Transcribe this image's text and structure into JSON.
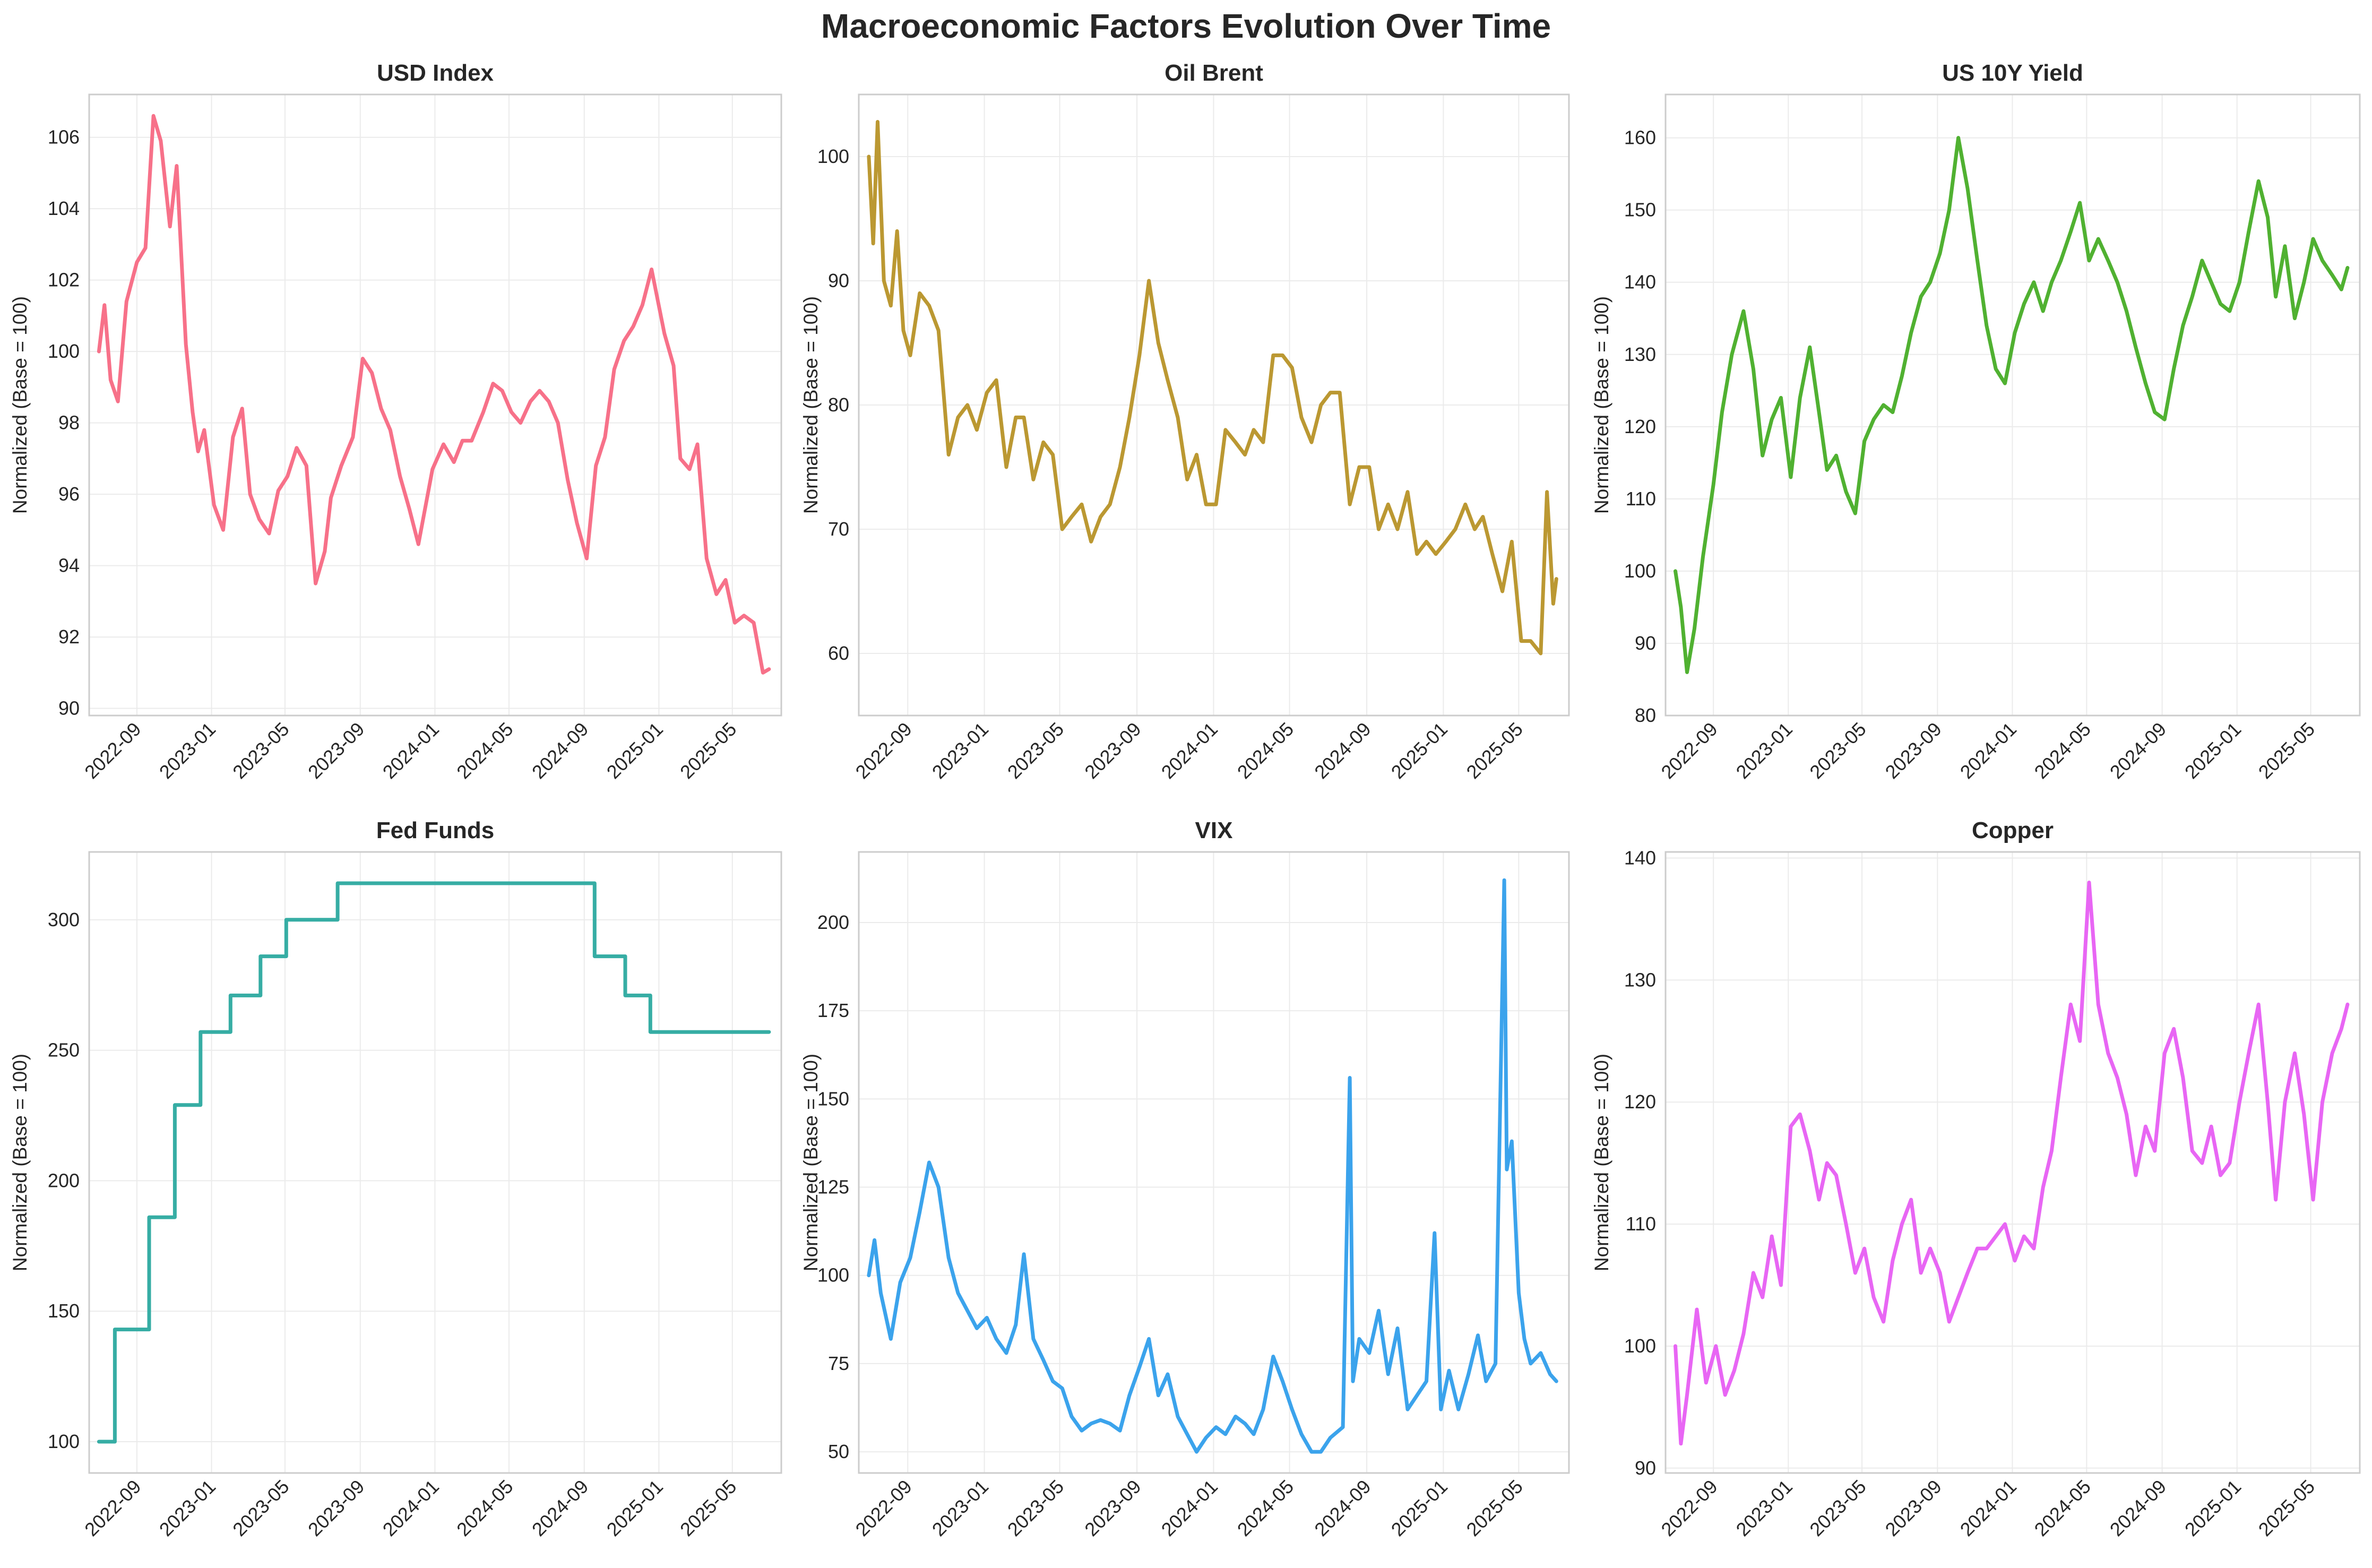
{
  "title": "Macroeconomic Factors Evolution Over Time",
  "colors": {
    "usd": "#f77189",
    "oil": "#bb9832",
    "yield": "#50b131",
    "fed": "#36ada4",
    "vix": "#3ba3ec",
    "copper": "#e866f4"
  },
  "chart_data": [
    {
      "type": "line",
      "title": "USD Index",
      "ylabel": "Normalized (Base = 100)",
      "color_key": "usd",
      "ylim": [
        89.8,
        107.2
      ],
      "yticks": [
        90,
        92,
        94,
        96,
        98,
        100,
        102,
        104,
        106
      ],
      "xlim": [
        "2022-06-15",
        "2025-07-20"
      ],
      "xticks": [
        "2022-09",
        "2023-01",
        "2023-05",
        "2023-09",
        "2024-01",
        "2024-05",
        "2024-09",
        "2025-01",
        "2025-05"
      ],
      "grid": true,
      "x": [
        "2022-07-01",
        "2022-07-10",
        "2022-07-20",
        "2022-08-01",
        "2022-08-15",
        "2022-09-01",
        "2022-09-15",
        "2022-09-28",
        "2022-10-10",
        "2022-10-25",
        "2022-11-05",
        "2022-11-20",
        "2022-12-01",
        "2022-12-10",
        "2022-12-20",
        "2023-01-05",
        "2023-01-20",
        "2023-02-05",
        "2023-02-20",
        "2023-03-05",
        "2023-03-20",
        "2023-04-05",
        "2023-04-20",
        "2023-05-05",
        "2023-05-20",
        "2023-06-05",
        "2023-06-20",
        "2023-07-05",
        "2023-07-15",
        "2023-08-01",
        "2023-08-20",
        "2023-09-05",
        "2023-09-20",
        "2023-10-05",
        "2023-10-20",
        "2023-11-05",
        "2023-11-20",
        "2023-12-05",
        "2023-12-28",
        "2024-01-15",
        "2024-02-01",
        "2024-02-15",
        "2024-03-01",
        "2024-03-20",
        "2024-04-05",
        "2024-04-20",
        "2024-05-05",
        "2024-05-20",
        "2024-06-05",
        "2024-06-20",
        "2024-07-05",
        "2024-07-20",
        "2024-08-05",
        "2024-08-20",
        "2024-09-05",
        "2024-09-20",
        "2024-10-05",
        "2024-10-20",
        "2024-11-05",
        "2024-11-20",
        "2024-12-05",
        "2024-12-20",
        "2025-01-10",
        "2025-01-25",
        "2025-02-05",
        "2025-02-20",
        "2025-03-05",
        "2025-03-20",
        "2025-04-05",
        "2025-04-20",
        "2025-05-05",
        "2025-05-20",
        "2025-06-05",
        "2025-06-20",
        "2025-06-30"
      ],
      "values": [
        100.0,
        101.3,
        99.2,
        98.6,
        101.4,
        102.5,
        102.9,
        106.6,
        105.9,
        103.5,
        105.2,
        100.2,
        98.3,
        97.2,
        97.8,
        95.7,
        95.0,
        97.6,
        98.4,
        96.0,
        95.3,
        94.9,
        96.1,
        96.5,
        97.3,
        96.8,
        93.5,
        94.4,
        95.9,
        96.8,
        97.6,
        99.8,
        99.4,
        98.4,
        97.8,
        96.5,
        95.6,
        94.6,
        96.7,
        97.4,
        96.9,
        97.5,
        97.5,
        98.3,
        99.1,
        98.9,
        98.3,
        98.0,
        98.6,
        98.9,
        98.6,
        98.0,
        96.4,
        95.2,
        94.2,
        96.8,
        97.6,
        99.5,
        100.3,
        100.7,
        101.3,
        102.3,
        100.5,
        99.6,
        97.0,
        96.7,
        97.4,
        94.2,
        93.2,
        93.6,
        92.4,
        92.6,
        92.4,
        91.0,
        91.1
      ]
    },
    {
      "type": "line",
      "title": "Oil Brent",
      "ylabel": "Normalized (Base = 100)",
      "color_key": "oil",
      "ylim": [
        55,
        105
      ],
      "yticks": [
        60,
        70,
        80,
        90,
        100
      ],
      "xlim": [
        "2022-06-15",
        "2025-07-20"
      ],
      "xticks": [
        "2022-09",
        "2023-01",
        "2023-05",
        "2023-09",
        "2024-01",
        "2024-05",
        "2024-09",
        "2025-01",
        "2025-05"
      ],
      "grid": true,
      "x": [
        "2022-07-01",
        "2022-07-08",
        "2022-07-15",
        "2022-07-25",
        "2022-08-05",
        "2022-08-15",
        "2022-08-25",
        "2022-09-05",
        "2022-09-20",
        "2022-10-05",
        "2022-10-20",
        "2022-11-05",
        "2022-11-20",
        "2022-12-05",
        "2022-12-20",
        "2023-01-05",
        "2023-01-20",
        "2023-02-05",
        "2023-02-20",
        "2023-03-05",
        "2023-03-20",
        "2023-04-05",
        "2023-04-20",
        "2023-05-05",
        "2023-05-20",
        "2023-06-05",
        "2023-06-20",
        "2023-07-05",
        "2023-07-20",
        "2023-08-05",
        "2023-08-20",
        "2023-09-05",
        "2023-09-20",
        "2023-10-05",
        "2023-10-20",
        "2023-11-05",
        "2023-11-20",
        "2023-12-05",
        "2023-12-20",
        "2024-01-05",
        "2024-01-20",
        "2024-02-05",
        "2024-02-20",
        "2024-03-05",
        "2024-03-20",
        "2024-04-05",
        "2024-04-20",
        "2024-05-05",
        "2024-05-20",
        "2024-06-05",
        "2024-06-20",
        "2024-07-05",
        "2024-07-20",
        "2024-08-05",
        "2024-08-20",
        "2024-09-05",
        "2024-09-20",
        "2024-10-05",
        "2024-10-20",
        "2024-11-05",
        "2024-11-20",
        "2024-12-05",
        "2024-12-20",
        "2025-01-05",
        "2025-01-20",
        "2025-02-05",
        "2025-02-20",
        "2025-03-05",
        "2025-03-20",
        "2025-04-05",
        "2025-04-20",
        "2025-05-05",
        "2025-05-20",
        "2025-06-05",
        "2025-06-15",
        "2025-06-25",
        "2025-06-30"
      ],
      "values": [
        100,
        93,
        102.8,
        90,
        88,
        94,
        86,
        84,
        89,
        88,
        86,
        76,
        79,
        80,
        78,
        81,
        82,
        75,
        79,
        79,
        74,
        77,
        76,
        70,
        71,
        72,
        69,
        71,
        72,
        75,
        79,
        84,
        90,
        85,
        82,
        79,
        74,
        76,
        72,
        72,
        78,
        77,
        76,
        78,
        77,
        84,
        84,
        83,
        79,
        77,
        80,
        81,
        81,
        72,
        75,
        75,
        70,
        72,
        70,
        73,
        68,
        69,
        68,
        69,
        70,
        72,
        70,
        71,
        68,
        65,
        69,
        61,
        61,
        60,
        73,
        64,
        66
      ]
    },
    {
      "type": "line",
      "title": "US 10Y Yield",
      "ylabel": "Normalized (Base = 100)",
      "color_key": "yield",
      "ylim": [
        80,
        166
      ],
      "yticks": [
        80,
        90,
        100,
        110,
        120,
        130,
        140,
        150,
        160
      ],
      "xlim": [
        "2022-06-15",
        "2025-07-20"
      ],
      "xticks": [
        "2022-09",
        "2023-01",
        "2023-05",
        "2023-09",
        "2024-01",
        "2024-05",
        "2024-09",
        "2025-01",
        "2025-05"
      ],
      "grid": true,
      "x": [
        "2022-07-01",
        "2022-07-10",
        "2022-07-20",
        "2022-08-01",
        "2022-08-15",
        "2022-09-01",
        "2022-09-15",
        "2022-10-01",
        "2022-10-20",
        "2022-11-05",
        "2022-11-20",
        "2022-12-05",
        "2022-12-20",
        "2023-01-05",
        "2023-01-20",
        "2023-02-05",
        "2023-02-20",
        "2023-03-05",
        "2023-03-20",
        "2023-04-05",
        "2023-04-20",
        "2023-05-05",
        "2023-05-20",
        "2023-06-05",
        "2023-06-20",
        "2023-07-05",
        "2023-07-20",
        "2023-08-05",
        "2023-08-20",
        "2023-09-05",
        "2023-09-20",
        "2023-10-05",
        "2023-10-20",
        "2023-11-05",
        "2023-11-20",
        "2023-12-05",
        "2023-12-20",
        "2024-01-05",
        "2024-01-20",
        "2024-02-05",
        "2024-02-20",
        "2024-03-05",
        "2024-03-20",
        "2024-04-05",
        "2024-04-20",
        "2024-05-05",
        "2024-05-20",
        "2024-06-05",
        "2024-06-20",
        "2024-07-05",
        "2024-07-20",
        "2024-08-05",
        "2024-08-20",
        "2024-09-05",
        "2024-09-20",
        "2024-10-05",
        "2024-10-20",
        "2024-11-05",
        "2024-11-20",
        "2024-12-05",
        "2024-12-20",
        "2025-01-05",
        "2025-01-20",
        "2025-02-05",
        "2025-02-20",
        "2025-03-05",
        "2025-03-20",
        "2025-04-05",
        "2025-04-20",
        "2025-05-05",
        "2025-05-20",
        "2025-06-05",
        "2025-06-20",
        "2025-06-30"
      ],
      "values": [
        100,
        95,
        86,
        92,
        102,
        112,
        122,
        130,
        136,
        128,
        116,
        121,
        124,
        113,
        124,
        131,
        122,
        114,
        116,
        111,
        108,
        118,
        121,
        123,
        122,
        127,
        133,
        138,
        140,
        144,
        150,
        160,
        153,
        143,
        134,
        128,
        126,
        133,
        137,
        140,
        136,
        140,
        143,
        147,
        151,
        143,
        146,
        143,
        140,
        136,
        131,
        126,
        122,
        121,
        128,
        134,
        138,
        143,
        140,
        137,
        136,
        140,
        147,
        154,
        149,
        138,
        145,
        135,
        140,
        146,
        143,
        141,
        139,
        142
      ]
    },
    {
      "type": "line",
      "title": "Fed Funds",
      "ylabel": "Normalized (Base = 100)",
      "color_key": "fed",
      "ylim": [
        88,
        326
      ],
      "yticks": [
        100,
        150,
        200,
        250,
        300
      ],
      "xlim": [
        "2022-06-15",
        "2025-07-20"
      ],
      "xticks": [
        "2022-09",
        "2023-01",
        "2023-05",
        "2023-09",
        "2024-01",
        "2024-05",
        "2024-09",
        "2025-01",
        "2025-05"
      ],
      "grid": true,
      "step": true,
      "x": [
        "2022-07-01",
        "2022-07-27",
        "2022-09-21",
        "2022-11-02",
        "2022-12-14",
        "2023-02-01",
        "2023-03-22",
        "2023-05-03",
        "2023-07-26",
        "2024-09-18",
        "2024-11-07",
        "2024-12-18",
        "2025-06-30"
      ],
      "values": [
        100,
        143,
        186,
        229,
        257,
        271,
        286,
        300,
        314,
        286,
        271,
        257,
        257
      ]
    },
    {
      "type": "line",
      "title": "VIX",
      "ylabel": "Normalized (Base = 100)",
      "color_key": "vix",
      "ylim": [
        44,
        220
      ],
      "yticks": [
        50,
        75,
        100,
        125,
        150,
        175,
        200
      ],
      "xlim": [
        "2022-06-15",
        "2025-07-20"
      ],
      "xticks": [
        "2022-09",
        "2023-01",
        "2023-05",
        "2023-09",
        "2024-01",
        "2024-05",
        "2024-09",
        "2025-01",
        "2025-05"
      ],
      "grid": true,
      "x": [
        "2022-07-01",
        "2022-07-10",
        "2022-07-20",
        "2022-08-05",
        "2022-08-20",
        "2022-09-05",
        "2022-09-20",
        "2022-10-05",
        "2022-10-20",
        "2022-11-05",
        "2022-11-20",
        "2022-12-05",
        "2022-12-20",
        "2023-01-05",
        "2023-01-20",
        "2023-02-05",
        "2023-02-20",
        "2023-03-05",
        "2023-03-20",
        "2023-04-05",
        "2023-04-20",
        "2023-05-05",
        "2023-05-20",
        "2023-06-05",
        "2023-06-20",
        "2023-07-05",
        "2023-07-20",
        "2023-08-05",
        "2023-08-20",
        "2023-09-05",
        "2023-09-20",
        "2023-10-05",
        "2023-10-20",
        "2023-11-05",
        "2023-11-20",
        "2023-12-05",
        "2023-12-20",
        "2024-01-05",
        "2024-01-20",
        "2024-02-05",
        "2024-02-20",
        "2024-03-05",
        "2024-03-20",
        "2024-04-05",
        "2024-04-20",
        "2024-05-05",
        "2024-05-20",
        "2024-06-05",
        "2024-06-20",
        "2024-07-05",
        "2024-07-25",
        "2024-08-05",
        "2024-08-10",
        "2024-08-20",
        "2024-09-05",
        "2024-09-20",
        "2024-10-05",
        "2024-10-20",
        "2024-11-05",
        "2024-11-20",
        "2024-12-05",
        "2024-12-18",
        "2024-12-28",
        "2025-01-10",
        "2025-01-25",
        "2025-02-10",
        "2025-02-25",
        "2025-03-10",
        "2025-03-25",
        "2025-04-08",
        "2025-04-12",
        "2025-04-20",
        "2025-05-01",
        "2025-05-10",
        "2025-05-20",
        "2025-06-05",
        "2025-06-20",
        "2025-06-30"
      ],
      "values": [
        100,
        110,
        95,
        82,
        98,
        105,
        118,
        132,
        125,
        105,
        95,
        90,
        85,
        88,
        82,
        78,
        86,
        106,
        82,
        76,
        70,
        68,
        60,
        56,
        58,
        59,
        58,
        56,
        66,
        74,
        82,
        66,
        72,
        60,
        55,
        50,
        54,
        57,
        55,
        60,
        58,
        55,
        62,
        77,
        70,
        62,
        55,
        50,
        50,
        54,
        57,
        156,
        70,
        82,
        78,
        90,
        72,
        85,
        62,
        66,
        70,
        112,
        62,
        73,
        62,
        72,
        83,
        70,
        75,
        212,
        130,
        138,
        95,
        82,
        75,
        78,
        72,
        70
      ]
    },
    {
      "type": "line",
      "title": "Copper",
      "ylabel": "Normalized (Base = 100)",
      "color_key": "copper",
      "ylim": [
        89.6,
        140.5
      ],
      "yticks": [
        90,
        100,
        110,
        120,
        130,
        140
      ],
      "xlim": [
        "2022-06-15",
        "2025-07-20"
      ],
      "xticks": [
        "2022-09",
        "2023-01",
        "2023-05",
        "2023-09",
        "2024-01",
        "2024-05",
        "2024-09",
        "2025-01",
        "2025-05"
      ],
      "grid": true,
      "x": [
        "2022-07-01",
        "2022-07-10",
        "2022-07-20",
        "2022-08-05",
        "2022-08-20",
        "2022-09-05",
        "2022-09-20",
        "2022-10-05",
        "2022-10-20",
        "2022-11-05",
        "2022-11-20",
        "2022-12-05",
        "2022-12-20",
        "2023-01-05",
        "2023-01-20",
        "2023-02-05",
        "2023-02-20",
        "2023-03-05",
        "2023-03-20",
        "2023-04-05",
        "2023-04-20",
        "2023-05-05",
        "2023-05-20",
        "2023-06-05",
        "2023-06-20",
        "2023-07-05",
        "2023-07-20",
        "2023-08-05",
        "2023-08-20",
        "2023-09-05",
        "2023-09-20",
        "2023-10-05",
        "2023-10-20",
        "2023-11-05",
        "2023-11-20",
        "2023-12-05",
        "2023-12-20",
        "2024-01-05",
        "2024-01-20",
        "2024-02-05",
        "2024-02-20",
        "2024-03-05",
        "2024-03-20",
        "2024-04-05",
        "2024-04-20",
        "2024-05-05",
        "2024-05-20",
        "2024-06-05",
        "2024-06-20",
        "2024-07-05",
        "2024-07-20",
        "2024-08-05",
        "2024-08-20",
        "2024-09-05",
        "2024-09-20",
        "2024-10-05",
        "2024-10-20",
        "2024-11-05",
        "2024-11-20",
        "2024-12-05",
        "2024-12-20",
        "2025-01-05",
        "2025-01-20",
        "2025-02-05",
        "2025-02-20",
        "2025-03-05",
        "2025-03-20",
        "2025-04-05",
        "2025-04-20",
        "2025-05-05",
        "2025-05-20",
        "2025-06-05",
        "2025-06-20",
        "2025-06-30"
      ],
      "values": [
        100,
        92,
        96,
        103,
        97,
        100,
        96,
        98,
        101,
        106,
        104,
        109,
        105,
        118,
        119,
        116,
        112,
        115,
        114,
        110,
        106,
        108,
        104,
        102,
        107,
        110,
        112,
        106,
        108,
        106,
        102,
        104,
        106,
        108,
        108,
        109,
        110,
        107,
        109,
        108,
        113,
        116,
        122,
        128,
        125,
        138,
        128,
        124,
        122,
        119,
        114,
        118,
        116,
        124,
        126,
        122,
        116,
        115,
        118,
        114,
        115,
        120,
        124,
        128,
        120,
        112,
        120,
        124,
        119,
        112,
        120,
        124,
        126,
        128
      ]
    }
  ]
}
